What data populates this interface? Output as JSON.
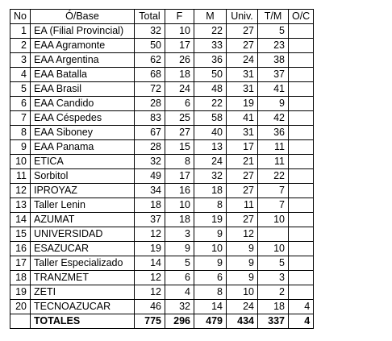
{
  "headers": {
    "no": "No",
    "name": "Ó/Base",
    "total": "Total",
    "f": "F",
    "m": "M",
    "univ": "Univ.",
    "tm": "T/M",
    "oc": "O/C"
  },
  "rows": [
    {
      "no": "1",
      "name": "EA   (Filial Provincial)",
      "total": "32",
      "f": "10",
      "m": "22",
      "univ": "27",
      "tm": "5",
      "oc": ""
    },
    {
      "no": "2",
      "name": "EAA Agramonte",
      "total": "50",
      "f": "17",
      "m": "33",
      "univ": "27",
      "tm": "23",
      "oc": ""
    },
    {
      "no": "3",
      "name": "EAA Argentina",
      "total": "62",
      "f": "26",
      "m": "36",
      "univ": "24",
      "tm": "38",
      "oc": ""
    },
    {
      "no": "4",
      "name": "EAA Batalla",
      "total": "68",
      "f": "18",
      "m": "50",
      "univ": "31",
      "tm": "37",
      "oc": ""
    },
    {
      "no": "5",
      "name": "EAA  Brasil",
      "total": "72",
      "f": "24",
      "m": "48",
      "univ": "31",
      "tm": "41",
      "oc": ""
    },
    {
      "no": "6",
      "name": "EAA Candido",
      "total": "28",
      "f": "6",
      "m": "22",
      "univ": "19",
      "tm": "9",
      "oc": ""
    },
    {
      "no": "7",
      "name": "EAA Céspedes",
      "total": "83",
      "f": "25",
      "m": "58",
      "univ": "41",
      "tm": "42",
      "oc": ""
    },
    {
      "no": "8",
      "name": "EAA Siboney",
      "total": "67",
      "f": "27",
      "m": "40",
      "univ": "31",
      "tm": "36",
      "oc": ""
    },
    {
      "no": "9",
      "name": "EAA Panama",
      "total": "28",
      "f": "15",
      "m": "13",
      "univ": "17",
      "tm": "11",
      "oc": ""
    },
    {
      "no": "10",
      "name": "ETICA",
      "total": "32",
      "f": "8",
      "m": "24",
      "univ": "21",
      "tm": "11",
      "oc": ""
    },
    {
      "no": "11",
      "name": "Sorbitol",
      "total": "49",
      "f": "17",
      "m": "32",
      "univ": "27",
      "tm": "22",
      "oc": ""
    },
    {
      "no": "12",
      "name": "IPROYAZ",
      "total": "34",
      "f": "16",
      "m": "18",
      "univ": "27",
      "tm": "7",
      "oc": ""
    },
    {
      "no": "13",
      "name": "Taller Lenin",
      "total": "18",
      "f": "10",
      "m": "8",
      "univ": "11",
      "tm": "7",
      "oc": ""
    },
    {
      "no": "14",
      "name": "AZUMAT",
      "total": "37",
      "f": "18",
      "m": "19",
      "univ": "27",
      "tm": "10",
      "oc": ""
    },
    {
      "no": "15",
      "name": "UNIVERSIDAD",
      "total": "12",
      "f": "3",
      "m": "9",
      "univ": "12",
      "tm": "",
      "oc": ""
    },
    {
      "no": "16",
      "name": "ESAZUCAR",
      "total": "19",
      "f": "9",
      "m": "10",
      "univ": "9",
      "tm": "10",
      "oc": ""
    },
    {
      "no": "17",
      "name": "Taller Especializado",
      "total": "14",
      "f": "5",
      "m": "9",
      "univ": "9",
      "tm": "5",
      "oc": ""
    },
    {
      "no": "18",
      "name": "TRANZMET",
      "total": "12",
      "f": "6",
      "m": "6",
      "univ": "9",
      "tm": "3",
      "oc": ""
    },
    {
      "no": "19",
      "name": "ZETI",
      "total": "12",
      "f": "4",
      "m": "8",
      "univ": "10",
      "tm": "2",
      "oc": ""
    },
    {
      "no": "20",
      "name": "TECNOAZUCAR",
      "total": "46",
      "f": "32",
      "m": "14",
      "univ": "24",
      "tm": "18",
      "oc": "4"
    }
  ],
  "totals": {
    "no": "",
    "name": "TOTALES",
    "total": "775",
    "f": "296",
    "m": "479",
    "univ": "434",
    "tm": "337",
    "oc": "4"
  }
}
